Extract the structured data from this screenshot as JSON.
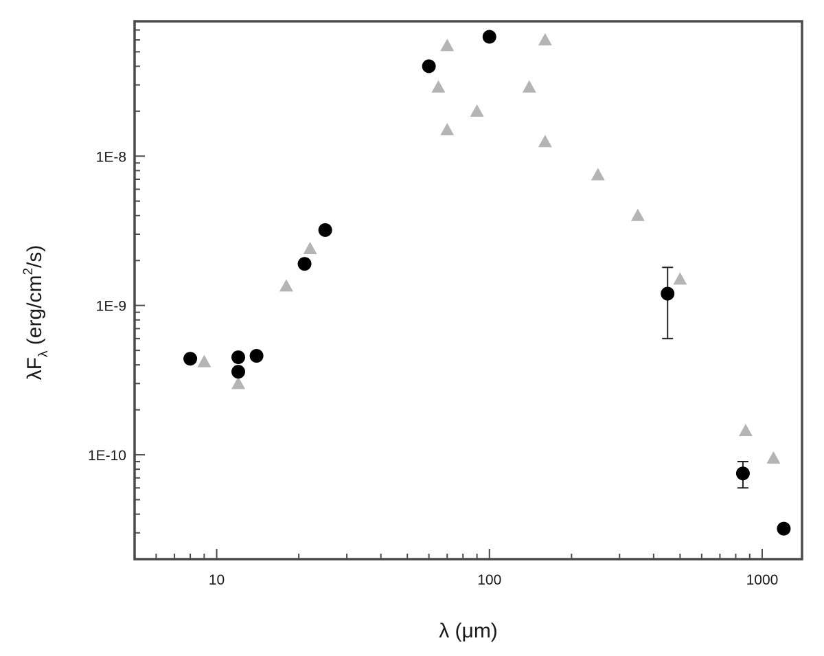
{
  "chart_data": {
    "type": "scatter",
    "title": "",
    "xlabel": "λ (μm)",
    "ylabel": {
      "prefix": "λF",
      "subscript": "λ",
      "unit_open": " (erg/cm",
      "superscript": "2",
      "unit_close": "/s)"
    },
    "x_scale": "log",
    "y_scale": "log",
    "xlim": [
      5,
      1400
    ],
    "ylim": [
      2e-11,
      8e-08
    ],
    "x_tick_labels": [
      {
        "value": 10,
        "label": "10"
      },
      {
        "value": 100,
        "label": "100"
      },
      {
        "value": 1000,
        "label": "1000"
      }
    ],
    "y_tick_labels": [
      {
        "value": 1e-10,
        "label": "1E-10"
      },
      {
        "value": 1e-09,
        "label": "1E-9"
      },
      {
        "value": 1e-08,
        "label": "1E-8"
      }
    ],
    "grid": false,
    "legend": "none",
    "series": [
      {
        "marker": "circle",
        "color": "#000000",
        "points": [
          {
            "x": 8,
            "y": 4.4e-10
          },
          {
            "x": 12,
            "y": 4.5e-10
          },
          {
            "x": 12,
            "y": 3.6e-10
          },
          {
            "x": 14,
            "y": 4.6e-10
          },
          {
            "x": 21,
            "y": 1.9e-09
          },
          {
            "x": 25,
            "y": 3.2e-09
          },
          {
            "x": 60,
            "y": 4e-08
          },
          {
            "x": 100,
            "y": 6.3e-08
          },
          {
            "x": 450,
            "y": 1.2e-09,
            "yerr_low": 6e-10,
            "yerr_high": 1.8e-09
          },
          {
            "x": 850,
            "y": 7.5e-11,
            "yerr_low": 6e-11,
            "yerr_high": 9e-11
          },
          {
            "x": 1200,
            "y": 3.2e-11
          }
        ]
      },
      {
        "marker": "triangle",
        "color": "#b4b4b4",
        "points": [
          {
            "x": 9,
            "y": 4.2e-10
          },
          {
            "x": 12,
            "y": 3e-10
          },
          {
            "x": 18,
            "y": 1.35e-09
          },
          {
            "x": 22,
            "y": 2.4e-09
          },
          {
            "x": 65,
            "y": 2.9e-08
          },
          {
            "x": 70,
            "y": 5.5e-08
          },
          {
            "x": 70,
            "y": 1.5e-08
          },
          {
            "x": 90,
            "y": 2e-08
          },
          {
            "x": 140,
            "y": 2.9e-08
          },
          {
            "x": 160,
            "y": 6e-08
          },
          {
            "x": 160,
            "y": 1.25e-08
          },
          {
            "x": 250,
            "y": 7.5e-09
          },
          {
            "x": 350,
            "y": 4e-09
          },
          {
            "x": 500,
            "y": 1.5e-09
          },
          {
            "x": 870,
            "y": 1.45e-10
          },
          {
            "x": 1100,
            "y": 9.5e-11
          }
        ]
      }
    ]
  }
}
